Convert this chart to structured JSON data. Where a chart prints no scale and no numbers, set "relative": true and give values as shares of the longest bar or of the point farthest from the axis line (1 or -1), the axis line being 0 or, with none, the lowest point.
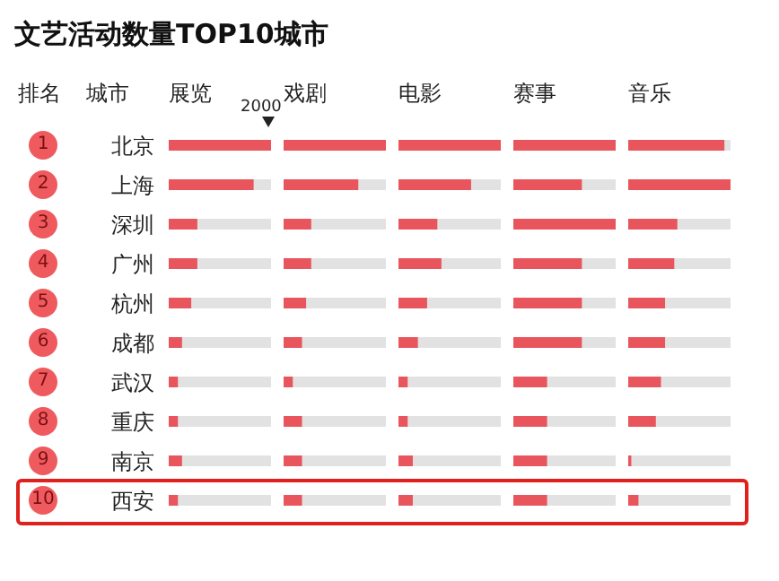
{
  "chart_data": [
    {
      "type": "bar",
      "orientation": "horizontal",
      "relative": true,
      "title": "文艺活动数量TOP10城市",
      "subtitle": "展览",
      "ylabel": "城市",
      "categories": [
        "北京",
        "上海",
        "深圳",
        "广州",
        "杭州",
        "成都",
        "武汉",
        "重庆",
        "南京",
        "西安"
      ],
      "color": "#e8555c",
      "values": [
        1,
        0.83,
        0.28,
        0.28,
        0.22,
        0.13,
        0.09,
        0.09,
        0.13,
        0.09
      ],
      "annotations": [
        "排名",
        "1",
        "2",
        "3",
        "4",
        "5",
        "6",
        "7",
        "8",
        "9",
        "10",
        "2000"
      ]
    },
    {
      "type": "bar",
      "orientation": "horizontal",
      "relative": true,
      "title": "戏剧",
      "tick_labels": false,
      "color": "#e8555c",
      "values": [
        1,
        0.73,
        0.27,
        0.27,
        0.22,
        0.18,
        0.09,
        0.18,
        0.18,
        0.18
      ]
    },
    {
      "type": "bar",
      "orientation": "horizontal",
      "relative": true,
      "title": "电影",
      "tick_labels": false,
      "color": "#e8555c",
      "values": [
        1,
        0.71,
        0.38,
        0.42,
        0.28,
        0.19,
        0.09,
        0.09,
        0.14,
        0.14
      ]
    },
    {
      "type": "bar",
      "orientation": "horizontal",
      "relative": true,
      "title": "赛事",
      "tick_labels": false,
      "color": "#e8555c",
      "values": [
        1,
        0.67,
        1,
        0.67,
        0.67,
        0.67,
        0.33,
        0.33,
        0.33,
        0.33
      ]
    },
    {
      "type": "bar",
      "orientation": "horizontal",
      "relative": true,
      "title": "音乐",
      "tick_labels": false,
      "color": "#e8555c",
      "values": [
        0.94,
        1,
        0.48,
        0.45,
        0.36,
        0.36,
        0.32,
        0.27,
        0.03,
        0.1
      ]
    }
  ]
}
